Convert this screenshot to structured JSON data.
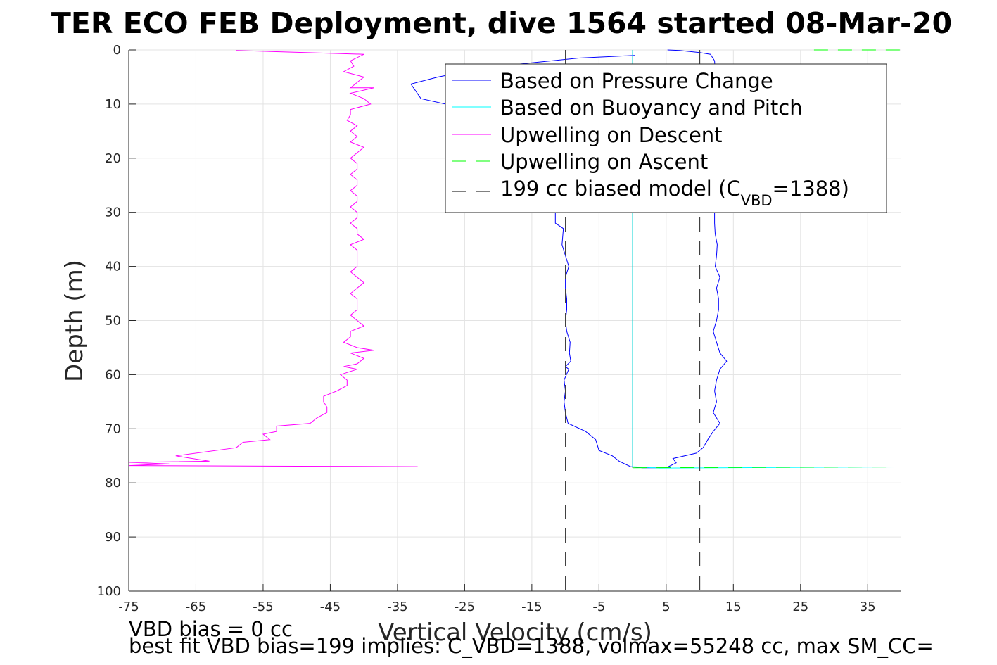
{
  "title": "TER ECO FEB Deployment, dive 1564 started 08-Mar-20",
  "chart_data": {
    "type": "line",
    "xlabel": "Vertical Velocity (cm/s)",
    "ylabel": "Depth (m)",
    "xlim": [
      -75,
      40
    ],
    "ylim": [
      100,
      0
    ],
    "y_reversed": true,
    "grid": true,
    "x_ticks": [
      "-75",
      "-65",
      "-55",
      "-45",
      "-35",
      "-25",
      "-15",
      "-5",
      "5",
      "15",
      "25",
      "35"
    ],
    "y_ticks": [
      "0",
      "10",
      "20",
      "30",
      "40",
      "50",
      "60",
      "70",
      "80",
      "90",
      "100"
    ],
    "legend": {
      "placement": "top-right",
      "entries": [
        {
          "label": "Based on Pressure Change",
          "color": "#0000ff",
          "style": "solid"
        },
        {
          "label": "Based on Buoyancy and Pitch",
          "color": "#00ffff",
          "style": "solid"
        },
        {
          "label": "Upwelling on Descent",
          "color": "#ff00ff",
          "style": "solid"
        },
        {
          "label": "Upwelling on Ascent",
          "color": "#00ff00",
          "style": "dashed"
        },
        {
          "label_prefix": "199 cc biased model (C",
          "label_sub": "VBD",
          "label_suffix": "=1388)",
          "color": "#000000",
          "style": "dashed"
        }
      ]
    },
    "series": [
      {
        "name": "Based on Pressure Change",
        "color": "#0000ff",
        "style": "solid",
        "points": [
          [
            0.3,
            1.0
          ],
          [
            -3,
            1.2
          ],
          [
            -8,
            1.5
          ],
          [
            -12,
            2
          ],
          [
            -16,
            2.5
          ],
          [
            -20,
            3
          ],
          [
            -25,
            4
          ],
          [
            -29,
            5
          ],
          [
            -33,
            6.3
          ],
          [
            -31.5,
            9
          ],
          [
            -26,
            10.5
          ],
          [
            -22,
            12
          ],
          [
            -18,
            15
          ],
          [
            -15,
            18
          ],
          [
            -13,
            22
          ],
          [
            -12,
            26
          ],
          [
            -11.5,
            30
          ],
          [
            -11.5,
            32
          ],
          [
            -10.3,
            33
          ],
          [
            -10.5,
            36
          ],
          [
            -10,
            38
          ],
          [
            -9.5,
            40
          ],
          [
            -10,
            42
          ],
          [
            -10,
            44
          ],
          [
            -9.8,
            46
          ],
          [
            -9.8,
            48
          ],
          [
            -10,
            50
          ],
          [
            -9.8,
            52
          ],
          [
            -9.3,
            54
          ],
          [
            -9.4,
            56
          ],
          [
            -9.2,
            57.5
          ],
          [
            -10,
            58.5
          ],
          [
            -9.5,
            59
          ],
          [
            -10.2,
            61
          ],
          [
            -10,
            63
          ],
          [
            -10.2,
            65
          ],
          [
            -10,
            67
          ],
          [
            -9.6,
            69
          ],
          [
            -7,
            70.5
          ],
          [
            -5.5,
            72
          ],
          [
            -5,
            74
          ],
          [
            -3,
            75
          ],
          [
            -2,
            76
          ],
          [
            -0.3,
            77
          ],
          [
            1.5,
            77.2
          ],
          [
            5,
            77.2
          ],
          [
            6.5,
            76.3
          ],
          [
            6,
            75.5
          ],
          [
            9.5,
            74.5
          ],
          [
            10.5,
            73.5
          ],
          [
            11.2,
            72
          ],
          [
            12,
            70.5
          ],
          [
            13,
            69
          ],
          [
            12,
            67
          ],
          [
            12.5,
            65
          ],
          [
            12.2,
            63
          ],
          [
            12.5,
            61
          ],
          [
            13,
            59
          ],
          [
            14,
            57.5
          ],
          [
            13,
            56
          ],
          [
            12.5,
            54
          ],
          [
            12,
            52
          ],
          [
            12.5,
            50
          ],
          [
            12.8,
            48
          ],
          [
            12.8,
            46
          ],
          [
            12.5,
            44
          ],
          [
            13,
            42
          ],
          [
            12.3,
            40
          ],
          [
            12.5,
            38
          ],
          [
            12.6,
            36
          ],
          [
            12.3,
            34
          ],
          [
            12.2,
            32
          ],
          [
            12.2,
            30
          ],
          [
            12.2,
            28
          ],
          [
            12.3,
            26
          ],
          [
            12.6,
            24
          ],
          [
            12.5,
            22
          ],
          [
            12.8,
            20
          ],
          [
            12.6,
            18
          ],
          [
            12.8,
            16
          ],
          [
            12.6,
            14
          ],
          [
            12.5,
            12
          ],
          [
            12.5,
            10
          ],
          [
            12,
            8
          ],
          [
            12,
            6
          ],
          [
            12.3,
            4
          ],
          [
            12.2,
            2
          ],
          [
            11.6,
            0.8
          ],
          [
            10,
            0.5
          ],
          [
            7,
            0.1
          ],
          [
            5.2,
            0
          ]
        ]
      },
      {
        "name": "Based on Buoyancy and Pitch",
        "color": "#00ffff",
        "style": "solid",
        "points": [
          [
            0,
            0
          ],
          [
            0,
            77
          ],
          [
            4,
            77.25
          ],
          [
            40,
            77.05
          ]
        ]
      },
      {
        "name": "Upwelling on Descent",
        "color": "#ff00ff",
        "style": "solid",
        "points": [
          [
            -59,
            0.1
          ],
          [
            -40,
            0.8
          ],
          [
            -42,
            2
          ],
          [
            -41.5,
            3
          ],
          [
            -43,
            4
          ],
          [
            -40,
            5
          ],
          [
            -41,
            6
          ],
          [
            -42,
            7
          ],
          [
            -38.5,
            7
          ],
          [
            -42,
            8
          ],
          [
            -40,
            9
          ],
          [
            -39,
            10
          ],
          [
            -42,
            11
          ],
          [
            -42,
            12
          ],
          [
            -42.5,
            13
          ],
          [
            -41,
            14
          ],
          [
            -42,
            15
          ],
          [
            -41,
            16
          ],
          [
            -42,
            17
          ],
          [
            -40,
            18
          ],
          [
            -41,
            19
          ],
          [
            -42,
            20
          ],
          [
            -41,
            21
          ],
          [
            -41,
            22
          ],
          [
            -42,
            23
          ],
          [
            -41,
            24
          ],
          [
            -41,
            25
          ],
          [
            -42,
            26
          ],
          [
            -41,
            27
          ],
          [
            -41,
            28
          ],
          [
            -42,
            29
          ],
          [
            -41,
            30
          ],
          [
            -41,
            31
          ],
          [
            -42,
            32
          ],
          [
            -41,
            33
          ],
          [
            -41,
            34
          ],
          [
            -40,
            35
          ],
          [
            -42,
            36
          ],
          [
            -41,
            37
          ],
          [
            -41,
            38
          ],
          [
            -41,
            39
          ],
          [
            -41,
            40
          ],
          [
            -42,
            41
          ],
          [
            -41,
            42
          ],
          [
            -40,
            43
          ],
          [
            -41,
            44
          ],
          [
            -42,
            45
          ],
          [
            -41,
            46
          ],
          [
            -41,
            47
          ],
          [
            -41,
            48
          ],
          [
            -42,
            49
          ],
          [
            -41,
            50
          ],
          [
            -40,
            51
          ],
          [
            -42,
            52
          ],
          [
            -42,
            53
          ],
          [
            -43,
            54
          ],
          [
            -41,
            55
          ],
          [
            -38.5,
            55.5
          ],
          [
            -42,
            56
          ],
          [
            -40,
            57
          ],
          [
            -41,
            58
          ],
          [
            -43,
            58.5
          ],
          [
            -41,
            59
          ],
          [
            -43.5,
            60
          ],
          [
            -42.5,
            61
          ],
          [
            -42.5,
            62
          ],
          [
            -44,
            63
          ],
          [
            -46,
            64
          ],
          [
            -46,
            65
          ],
          [
            -45.5,
            66
          ],
          [
            -45.5,
            67
          ],
          [
            -47,
            68
          ],
          [
            -48,
            69
          ],
          [
            -53,
            69.5
          ],
          [
            -53,
            70.5
          ],
          [
            -55,
            71
          ],
          [
            -54,
            72
          ],
          [
            -58,
            72.5
          ],
          [
            -59,
            73.5
          ],
          [
            -68,
            75
          ],
          [
            -63,
            76
          ],
          [
            -75,
            76.2
          ],
          [
            -69,
            76.5
          ],
          [
            -75,
            76.8
          ],
          [
            -32,
            77
          ]
        ]
      },
      {
        "name": "Upwelling on Ascent",
        "color": "#00ff00",
        "style": "dashed",
        "points": [
          [
            0,
            77.2
          ],
          [
            40,
            77.05
          ]
        ],
        "points_top": [
          [
            27,
            0
          ],
          [
            40,
            0
          ]
        ]
      },
      {
        "name": "199 cc biased model",
        "color": "#404040",
        "style": "dashed",
        "vertical_lines_x": [
          -10,
          10
        ]
      }
    ],
    "zero_line": {
      "x": 0,
      "color": "#000000"
    }
  },
  "footer": {
    "line1": "VBD bias = 0 cc",
    "line2": "best fit VBD bias=199 implies: C_VBD=1388, volmax=55248 cc, max SM_CC="
  }
}
